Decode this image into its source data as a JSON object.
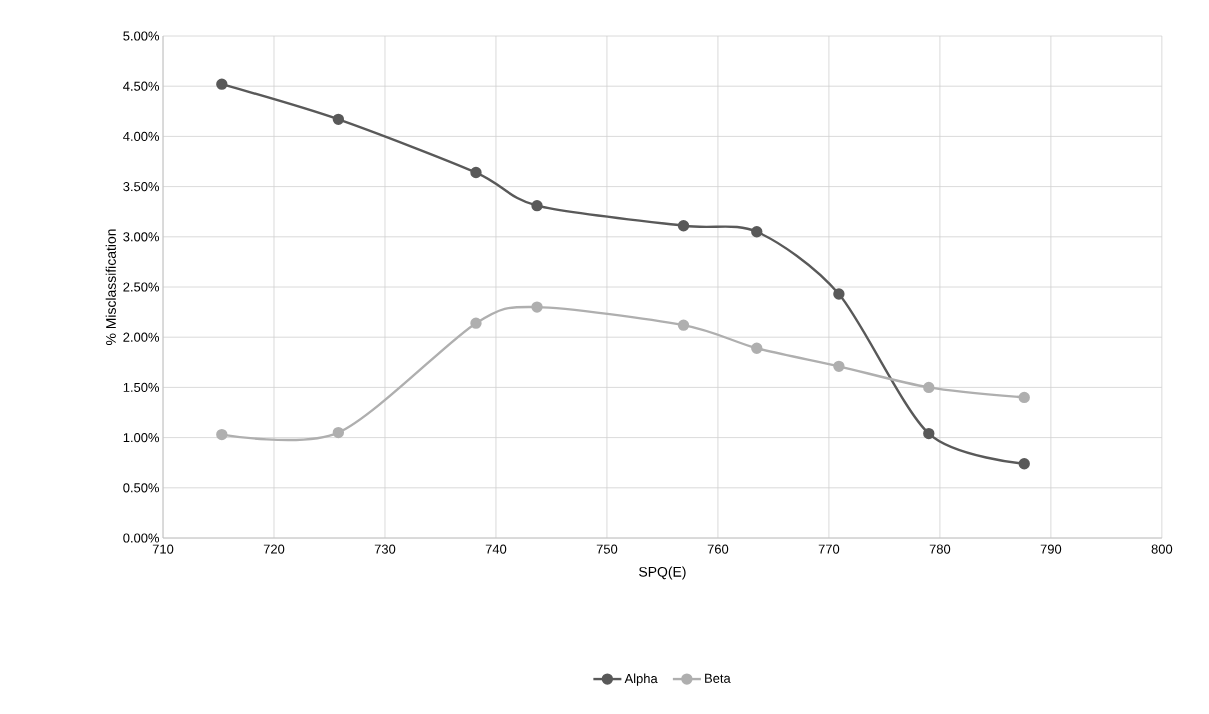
{
  "chart_data": {
    "type": "line",
    "xlabel": "SPQ(E)",
    "ylabel": "% Misclassification",
    "x": [
      715.3,
      725.8,
      738.2,
      743.7,
      756.9,
      763.5,
      770.9,
      779.0,
      787.6
    ],
    "series": [
      {
        "name": "Alpha",
        "color": "#595959",
        "values": [
          4.52,
          4.17,
          3.64,
          3.31,
          3.11,
          3.05,
          2.43,
          1.04,
          0.74
        ]
      },
      {
        "name": "Beta",
        "color": "#afafaf",
        "values": [
          1.03,
          1.05,
          2.14,
          2.3,
          2.12,
          1.89,
          1.71,
          1.5,
          1.4
        ]
      }
    ],
    "xlim": [
      710,
      800
    ],
    "xticks": [
      710,
      720,
      730,
      740,
      750,
      760,
      770,
      780,
      790,
      800
    ],
    "ylim": [
      0,
      5
    ],
    "yticks": [
      {
        "value": 0,
        "label": "0.00%"
      },
      {
        "value": 0.5,
        "label": "0.50%"
      },
      {
        "value": 1,
        "label": "1.00%"
      },
      {
        "value": 1.5,
        "label": "1.50%"
      },
      {
        "value": 2,
        "label": "2.00%"
      },
      {
        "value": 2.5,
        "label": "2.50%"
      },
      {
        "value": 3,
        "label": "3.00%"
      },
      {
        "value": 3.5,
        "label": "3.50%"
      },
      {
        "value": 4,
        "label": "4.00%"
      },
      {
        "value": 4.5,
        "label": "4.50%"
      },
      {
        "value": 5,
        "label": "5.00%"
      }
    ],
    "grid": true,
    "legend": "bottom",
    "marker": "circle",
    "line_style": "solid"
  }
}
